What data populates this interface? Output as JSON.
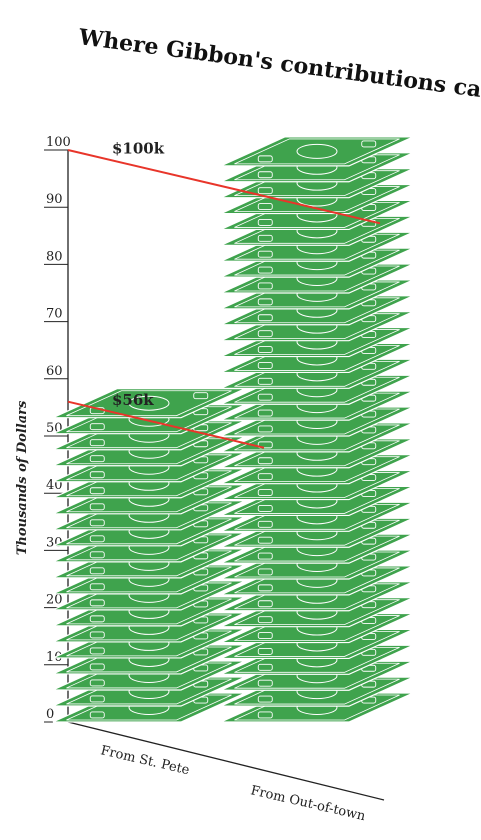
{
  "chart_data": {
    "type": "bar",
    "title": "Where Gibbon's contributions came from:",
    "ylabel": "Thousands of Dollars",
    "xlabel": "",
    "ylim": [
      0,
      100
    ],
    "yticks": [
      "0",
      "10",
      "20",
      "30",
      "40",
      "50",
      "60",
      "70",
      "80",
      "90",
      "100"
    ],
    "categories": [
      "From St. Pete",
      "From Out-of-town"
    ],
    "values": [
      56,
      100
    ],
    "annotations": [
      "$56k",
      "$100k"
    ],
    "grid": false,
    "legend": "none",
    "colors": {
      "bill_fill": "#3fa34d",
      "bill_stroke": "#ffffff",
      "reference_line": "#e8352a",
      "axis": "#222222"
    }
  }
}
